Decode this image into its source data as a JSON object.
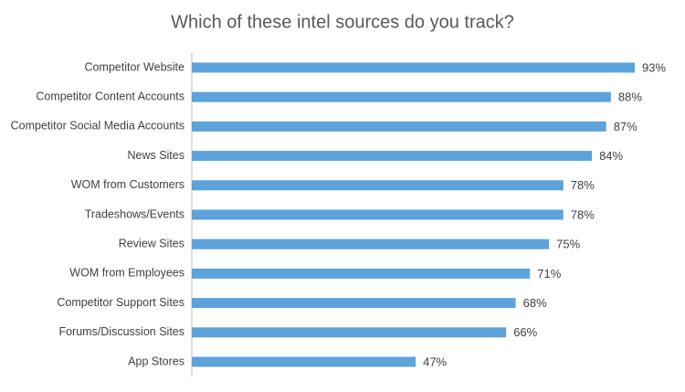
{
  "chart_data": {
    "type": "barh",
    "title": "Which of these intel sources do you track?",
    "categories": [
      "Competitor Website",
      "Competitor Content Accounts",
      "Competitor Social Media Accounts",
      "News Sites",
      "WOM from Customers",
      "Tradeshows/Events",
      "Review Sites",
      "WOM from Employees",
      "Competitor Support Sites",
      "Forums/Discussion Sites",
      "App Stores"
    ],
    "values": [
      93,
      88,
      87,
      84,
      78,
      78,
      75,
      71,
      68,
      66,
      47
    ],
    "value_labels": [
      "93%",
      "88%",
      "87%",
      "84%",
      "78%",
      "78%",
      "75%",
      "71%",
      "68%",
      "66%",
      "47%"
    ],
    "color": "#5ca3dc"
  }
}
